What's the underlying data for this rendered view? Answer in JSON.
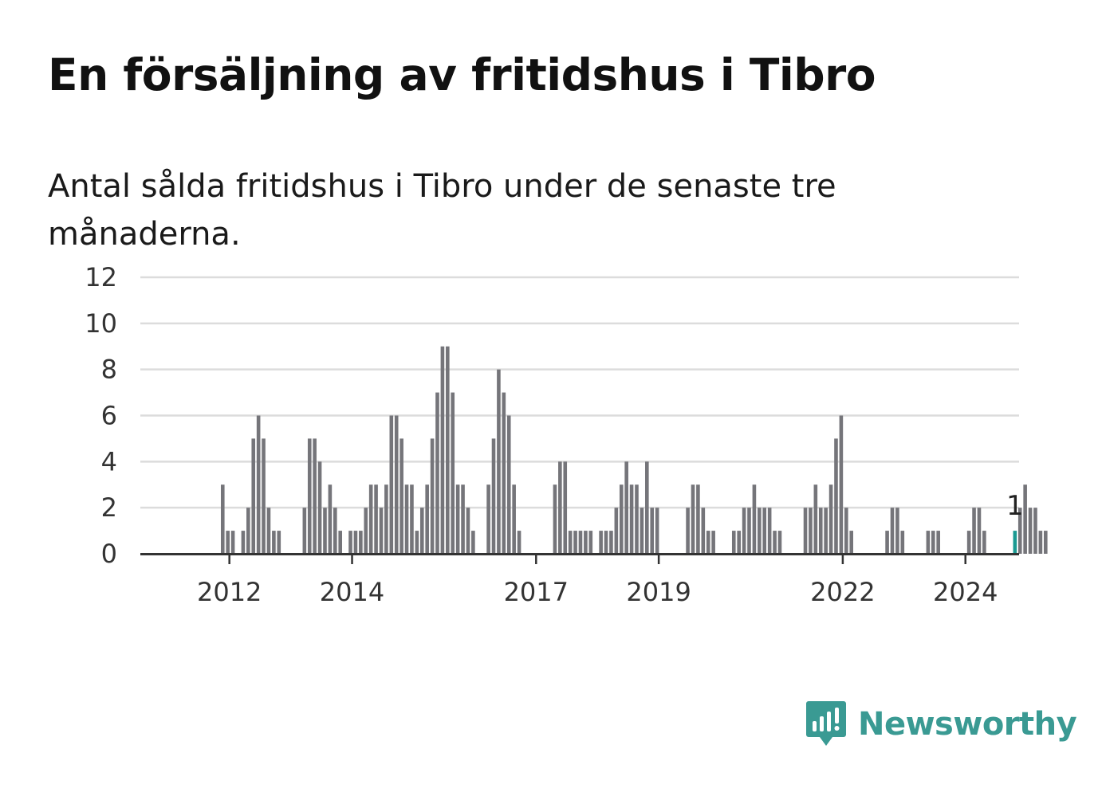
{
  "title": "En försäljning av fritidshus i Tibro",
  "subtitle": "Antal sålda fritidshus i Tibro under de senaste tre månaderna.",
  "brand": {
    "name": "Newsworthy",
    "icon": "newsworthy-logo-icon",
    "color": "#3a9a93"
  },
  "chart_data": {
    "type": "bar",
    "title": "",
    "xlabel": "",
    "ylabel": "",
    "ylim": [
      0,
      12
    ],
    "yticks": [
      "0",
      "2",
      "4",
      "6",
      "8",
      "10",
      "12"
    ],
    "xticks": [
      {
        "label": "2012",
        "index": 9
      },
      {
        "label": "2014",
        "index": 33
      },
      {
        "label": "2017",
        "index": 69
      },
      {
        "label": "2019",
        "index": 93
      },
      {
        "label": "2022",
        "index": 129
      },
      {
        "label": "2024",
        "index": 153
      }
    ],
    "grid": true,
    "bar_color": "#75757a",
    "highlight_color": "#1b9a92",
    "highlight_index": 163,
    "highlight_label": "1",
    "values": [
      0,
      0,
      0,
      0,
      0,
      0,
      0,
      0,
      3,
      1,
      1,
      0,
      1,
      2,
      5,
      6,
      5,
      2,
      1,
      1,
      0,
      0,
      0,
      0,
      2,
      5,
      5,
      4,
      2,
      3,
      2,
      1,
      0,
      1,
      1,
      1,
      2,
      3,
      3,
      2,
      3,
      6,
      6,
      5,
      3,
      3,
      1,
      2,
      3,
      5,
      7,
      9,
      9,
      7,
      3,
      3,
      2,
      1,
      0,
      0,
      3,
      5,
      8,
      7,
      6,
      3,
      1,
      0,
      0,
      0,
      0,
      0,
      0,
      3,
      4,
      4,
      1,
      1,
      1,
      1,
      1,
      0,
      1,
      1,
      1,
      2,
      3,
      4,
      3,
      3,
      2,
      4,
      2,
      2,
      0,
      0,
      0,
      0,
      0,
      2,
      3,
      3,
      2,
      1,
      1,
      0,
      0,
      0,
      1,
      1,
      2,
      2,
      3,
      2,
      2,
      2,
      1,
      1,
      0,
      0,
      0,
      0,
      2,
      2,
      3,
      2,
      2,
      3,
      5,
      6,
      2,
      1,
      0,
      0,
      0,
      0,
      0,
      0,
      1,
      2,
      2,
      1,
      0,
      0,
      0,
      0,
      1,
      1,
      1,
      0,
      0,
      0,
      0,
      0,
      1,
      2,
      2,
      1,
      0,
      0,
      0,
      0,
      0,
      1,
      2,
      3,
      2,
      2,
      1,
      1
    ]
  }
}
